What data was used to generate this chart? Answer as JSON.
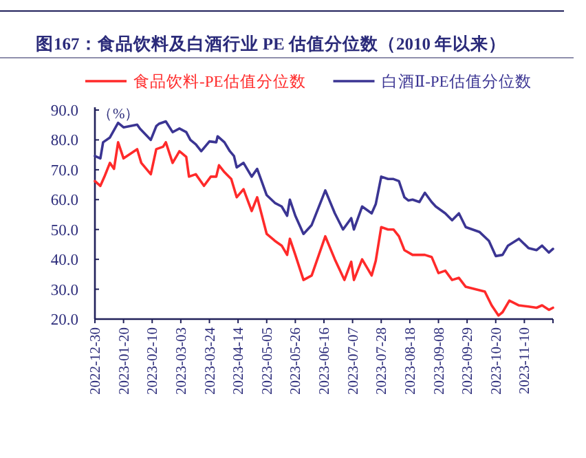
{
  "chart_data": {
    "type": "line",
    "title": "图167：食品饮料及白酒行业 PE 估值分位数（2010 年以来）",
    "ylabel": "（%）",
    "legend": "top",
    "grid": false,
    "ylim": [
      20,
      90
    ],
    "yticks": [
      {
        "value": 20,
        "label": "20.0"
      },
      {
        "value": 30,
        "label": "30.0"
      },
      {
        "value": 40,
        "label": "40.0"
      },
      {
        "value": 50,
        "label": "50.0"
      },
      {
        "value": 60,
        "label": "60.0"
      },
      {
        "value": 70,
        "label": "70.0"
      },
      {
        "value": 80,
        "label": "80.0"
      },
      {
        "value": 90,
        "label": "90.0"
      }
    ],
    "xlim": [
      "2022-12-30",
      "2023-12-01"
    ],
    "xticks": [
      "2022-12-30",
      "2023-01-20",
      "2023-02-10",
      "2023-03-03",
      "2023-03-24",
      "2023-04-14",
      "2023-05-05",
      "2023-05-26",
      "2023-06-16",
      "2023-07-07",
      "2023-07-28",
      "2023-08-18",
      "2023-09-08",
      "2023-09-29",
      "2023-10-20",
      "2023-11-10"
    ],
    "series": [
      {
        "name": "食品饮料-PE估值分位数",
        "color": "#ff2a2a",
        "x": [
          "2022-12-30",
          "2023-01-03",
          "2023-01-06",
          "2023-01-10",
          "2023-01-13",
          "2023-01-16",
          "2023-01-20",
          "2023-01-30",
          "2023-02-02",
          "2023-02-09",
          "2023-02-13",
          "2023-02-18",
          "2023-02-20",
          "2023-02-25",
          "2023-03-02",
          "2023-03-07",
          "2023-03-09",
          "2023-03-14",
          "2023-03-20",
          "2023-03-25",
          "2023-03-29",
          "2023-03-31",
          "2023-04-04",
          "2023-04-09",
          "2023-04-13",
          "2023-04-18",
          "2023-04-24",
          "2023-04-28",
          "2023-05-05",
          "2023-05-11",
          "2023-05-16",
          "2023-05-20",
          "2023-05-22",
          "2023-05-26",
          "2023-06-01",
          "2023-06-07",
          "2023-06-17",
          "2023-06-24",
          "2023-07-01",
          "2023-07-06",
          "2023-07-08",
          "2023-07-14",
          "2023-07-21",
          "2023-07-24",
          "2023-07-28",
          "2023-08-02",
          "2023-08-06",
          "2023-08-10",
          "2023-08-14",
          "2023-08-20",
          "2023-08-29",
          "2023-09-03",
          "2023-09-08",
          "2023-09-13",
          "2023-09-18",
          "2023-09-23",
          "2023-09-28",
          "2023-10-12",
          "2023-10-17",
          "2023-10-22",
          "2023-10-25",
          "2023-10-30",
          "2023-11-06",
          "2023-11-13",
          "2023-11-19",
          "2023-11-23",
          "2023-11-28",
          "2023-12-01"
        ],
        "values": [
          66.2,
          64.6,
          67.7,
          72.3,
          70.3,
          79.2,
          73.8,
          76.9,
          72.3,
          68.5,
          76.9,
          77.7,
          79.2,
          72.3,
          76.2,
          74.3,
          67.7,
          68.5,
          64.6,
          67.7,
          67.7,
          71.5,
          69.2,
          66.9,
          60.8,
          63.5,
          56.2,
          60.8,
          48.5,
          46.2,
          44.6,
          41.5,
          46.9,
          41.5,
          33.1,
          34.6,
          47.7,
          40.0,
          33.1,
          39.2,
          33.1,
          40.0,
          34.6,
          39.5,
          50.8,
          50.0,
          50.0,
          47.7,
          43.1,
          41.5,
          41.5,
          40.8,
          35.4,
          36.2,
          33.1,
          33.8,
          30.8,
          29.2,
          24.6,
          21.2,
          22.3,
          26.2,
          24.6,
          24.2,
          23.8,
          24.6,
          23.1,
          23.8
        ]
      },
      {
        "name": "白酒Ⅱ-PE估值分位数",
        "color": "#3b3593",
        "x": [
          "2022-12-30",
          "2023-01-03",
          "2023-01-05",
          "2023-01-10",
          "2023-01-16",
          "2023-01-20",
          "2023-01-30",
          "2023-02-01",
          "2023-02-09",
          "2023-02-13",
          "2023-02-15",
          "2023-02-20",
          "2023-02-25",
          "2023-03-02",
          "2023-03-07",
          "2023-03-10",
          "2023-03-14",
          "2023-03-18",
          "2023-03-24",
          "2023-03-29",
          "2023-03-30",
          "2023-04-04",
          "2023-04-08",
          "2023-04-11",
          "2023-04-13",
          "2023-04-18",
          "2023-04-24",
          "2023-04-28",
          "2023-05-05",
          "2023-05-11",
          "2023-05-16",
          "2023-05-20",
          "2023-05-22",
          "2023-05-26",
          "2023-06-01",
          "2023-06-07",
          "2023-06-17",
          "2023-06-24",
          "2023-06-30",
          "2023-07-06",
          "2023-07-08",
          "2023-07-14",
          "2023-07-21",
          "2023-07-24",
          "2023-07-28",
          "2023-08-02",
          "2023-08-06",
          "2023-08-10",
          "2023-08-14",
          "2023-08-17",
          "2023-08-20",
          "2023-08-25",
          "2023-08-29",
          "2023-09-03",
          "2023-09-06",
          "2023-09-13",
          "2023-09-18",
          "2023-09-23",
          "2023-09-28",
          "2023-10-08",
          "2023-10-15",
          "2023-10-20",
          "2023-10-25",
          "2023-10-29",
          "2023-11-06",
          "2023-11-13",
          "2023-11-19",
          "2023-11-23",
          "2023-11-28",
          "2023-12-01"
        ],
        "values": [
          74.6,
          73.8,
          79.2,
          80.8,
          85.7,
          84.2,
          85.1,
          83.8,
          80.0,
          84.6,
          85.4,
          86.2,
          82.6,
          83.8,
          82.6,
          80.0,
          78.5,
          76.2,
          79.5,
          79.2,
          81.2,
          79.2,
          76.2,
          74.6,
          70.8,
          72.3,
          67.7,
          70.3,
          61.5,
          58.9,
          57.7,
          54.6,
          60.0,
          54.6,
          48.5,
          51.5,
          63.1,
          55.4,
          50.0,
          53.8,
          50.0,
          57.7,
          55.4,
          58.5,
          67.7,
          66.9,
          66.9,
          66.2,
          60.8,
          59.7,
          60.0,
          59.2,
          62.3,
          59.2,
          57.7,
          55.4,
          53.1,
          55.4,
          50.8,
          49.2,
          46.2,
          41.1,
          41.5,
          44.6,
          46.9,
          43.8,
          43.1,
          44.6,
          42.3,
          43.5
        ]
      }
    ]
  }
}
